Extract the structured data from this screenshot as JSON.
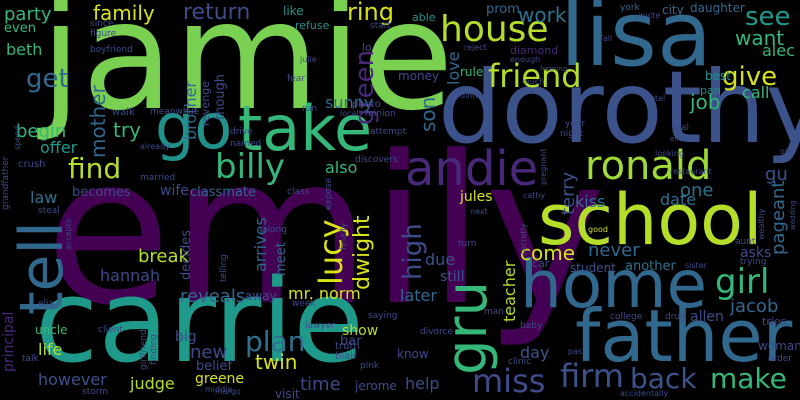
{
  "palette": {
    "dark_purple": "#440154",
    "indigo": "#3b528b",
    "teal_blue": "#31688e",
    "teal": "#21918c",
    "green": "#35b779",
    "lime": "#7ad151",
    "yellow": "#fde725"
  },
  "words": [
    {
      "text": "emily",
      "color": "#440154"
    },
    {
      "text": "jamie",
      "color": "#7ad151"
    },
    {
      "text": "carrie",
      "color": "#1f9a8a"
    },
    {
      "text": "dorothy",
      "color": "#3b528b"
    },
    {
      "text": "lisa",
      "color": "#31688e"
    },
    {
      "text": "father",
      "color": "#31688e"
    },
    {
      "text": "school",
      "color": "#b5de2b"
    },
    {
      "text": "home",
      "color": "#31688e"
    },
    {
      "text": "take",
      "color": "#35b779"
    },
    {
      "text": "go",
      "color": "#21918c"
    },
    {
      "text": "tell",
      "color": "#31688e"
    },
    {
      "text": "gru",
      "color": "#35b779"
    },
    {
      "text": "andie",
      "color": "#482878"
    },
    {
      "text": "ronald",
      "color": "#a0da39"
    },
    {
      "text": "house",
      "color": "#b5de2b"
    },
    {
      "text": "friend",
      "color": "#b5de2b"
    },
    {
      "text": "girl",
      "color": "#35b779"
    },
    {
      "text": "billy",
      "color": "#35b779"
    },
    {
      "text": "find",
      "color": "#b5de2b"
    },
    {
      "text": "lucy",
      "color": "#d8e219"
    },
    {
      "text": "miss",
      "color": "#3e4a89"
    },
    {
      "text": "firm",
      "color": "#3b528b"
    },
    {
      "text": "back",
      "color": "#3b528b"
    },
    {
      "text": "make",
      "color": "#35b779"
    },
    {
      "text": "plan",
      "color": "#2c728e"
    },
    {
      "text": "high",
      "color": "#3e4a89"
    },
    {
      "text": "dwight",
      "color": "#d8e219"
    },
    {
      "text": "give",
      "color": "#d8e219"
    },
    {
      "text": "see",
      "color": "#1f9a8a"
    },
    {
      "text": "want",
      "color": "#35b779"
    },
    {
      "text": "return",
      "color": "#3e4a89"
    },
    {
      "text": "family",
      "color": "#d8e219"
    },
    {
      "text": "get",
      "color": "#31688e"
    },
    {
      "text": "party",
      "color": "#35b779"
    },
    {
      "text": "ring",
      "color": "#d8e219"
    },
    {
      "text": "green",
      "color": "#482878"
    },
    {
      "text": "mother",
      "color": "#31688e"
    },
    {
      "text": "brother",
      "color": "#31688e"
    },
    {
      "text": "try",
      "color": "#35b779"
    },
    {
      "text": "begin",
      "color": "#35b779"
    },
    {
      "text": "beth",
      "color": "#35b779"
    },
    {
      "text": "even",
      "color": "#35b779"
    },
    {
      "text": "job",
      "color": "#35b779"
    },
    {
      "text": "alec",
      "color": "#35b779"
    },
    {
      "text": "call",
      "color": "#35b779"
    },
    {
      "text": "work",
      "color": "#2c728e"
    },
    {
      "text": "love",
      "color": "#31688e"
    },
    {
      "text": "son",
      "color": "#31688e"
    },
    {
      "text": "sunny",
      "color": "#31688e"
    },
    {
      "text": "kiss",
      "color": "#2c728e"
    },
    {
      "text": "date",
      "color": "#2c728e"
    },
    {
      "text": "one",
      "color": "#2c728e"
    },
    {
      "text": "gu",
      "color": "#3b528b"
    },
    {
      "text": "terry",
      "color": "#3b528b"
    },
    {
      "text": "come",
      "color": "#d8e219"
    },
    {
      "text": "never",
      "color": "#31688e"
    },
    {
      "text": "pageant",
      "color": "#31688e"
    },
    {
      "text": "asks",
      "color": "#3e4a89"
    },
    {
      "text": "jacob",
      "color": "#31688e"
    },
    {
      "text": "allen",
      "color": "#3e4a89"
    },
    {
      "text": "woman",
      "color": "#3e4a89"
    },
    {
      "text": "tries",
      "color": "#3e4a89"
    },
    {
      "text": "law",
      "color": "#2c728e"
    },
    {
      "text": "offer",
      "color": "#1f9a8a"
    },
    {
      "text": "becomes",
      "color": "#3e4a89"
    },
    {
      "text": "wife",
      "color": "#3e4a89"
    },
    {
      "text": "classmate",
      "color": "#31688e"
    },
    {
      "text": "also",
      "color": "#35b779"
    },
    {
      "text": "arrives",
      "color": "#31688e"
    },
    {
      "text": "break",
      "color": "#b5de2b"
    },
    {
      "text": "hannah",
      "color": "#3e4a89"
    },
    {
      "text": "reveals",
      "color": "#31688e"
    },
    {
      "text": "mr. norm",
      "color": "#d8e219"
    },
    {
      "text": "later",
      "color": "#31688e"
    },
    {
      "text": "due",
      "color": "#3b528b"
    },
    {
      "text": "still",
      "color": "#3b528b"
    },
    {
      "text": "jules",
      "color": "#d8e219"
    },
    {
      "text": "teacher",
      "color": "#b5de2b"
    },
    {
      "text": "student",
      "color": "#3b528b"
    },
    {
      "text": "another",
      "color": "#2c728e"
    },
    {
      "text": "new",
      "color": "#3e4a89"
    },
    {
      "text": "twin",
      "color": "#d8e219"
    },
    {
      "text": "greene",
      "color": "#d8e219"
    },
    {
      "text": "time",
      "color": "#3e4a89"
    },
    {
      "text": "help",
      "color": "#3e4a89"
    },
    {
      "text": "show",
      "color": "#b5de2b"
    },
    {
      "text": "day",
      "color": "#3b528b"
    },
    {
      "text": "judge",
      "color": "#b5de2b"
    },
    {
      "text": "life",
      "color": "#b5de2b"
    },
    {
      "text": "however",
      "color": "#3b528b"
    },
    {
      "text": "uncle",
      "color": "#35b779"
    },
    {
      "text": "principal",
      "color": "#482878"
    },
    {
      "text": "big",
      "color": "#3e4a89"
    },
    {
      "text": "belief",
      "color": "#3e4a89"
    },
    {
      "text": "bar",
      "color": "#3e4a89"
    },
    {
      "text": "meet",
      "color": "#31688e"
    },
    {
      "text": "away",
      "color": "#3b528b"
    },
    {
      "text": "decides",
      "color": "#3e4a89"
    },
    {
      "text": "though",
      "color": "#3e4a89"
    },
    {
      "text": "revenge",
      "color": "#3e4a89"
    },
    {
      "text": "money",
      "color": "#3e4a89"
    },
    {
      "text": "diamond",
      "color": "#482878"
    },
    {
      "text": "rule",
      "color": "#35b779"
    },
    {
      "text": "prom",
      "color": "#31688e"
    },
    {
      "text": "city",
      "color": "#31688e"
    },
    {
      "text": "daughter",
      "color": "#31688e"
    },
    {
      "text": "york",
      "color": "#31688e"
    },
    {
      "text": "best",
      "color": "#21918c"
    },
    {
      "text": "pan",
      "color": "#21918c"
    },
    {
      "text": "like",
      "color": "#21918c"
    },
    {
      "text": "refuse",
      "color": "#21918c"
    },
    {
      "text": "able",
      "color": "#21918c"
    },
    {
      "text": "visit",
      "color": "#3e4a89"
    },
    {
      "text": "jerome",
      "color": "#3e4a89"
    },
    {
      "text": "know",
      "color": "#3e4a89"
    },
    {
      "text": "truth",
      "color": "#3e4a89"
    },
    {
      "text": "blair",
      "color": "#3e4a89"
    },
    {
      "text": "since",
      "color": "#3e4a89"
    },
    {
      "text": "figure",
      "color": "#3e4a89"
    },
    {
      "text": "boyfriend",
      "color": "#3e4a89"
    },
    {
      "text": "walk",
      "color": "#3e4a89"
    },
    {
      "text": "meanwhile",
      "color": "#3e4a89"
    },
    {
      "text": "drive",
      "color": "#3e4a89"
    },
    {
      "text": "named",
      "color": "#3e4a89"
    },
    {
      "text": "married",
      "color": "#3e4a89"
    },
    {
      "text": "already",
      "color": "#3e4a89"
    },
    {
      "text": "crush",
      "color": "#3e4a89"
    },
    {
      "text": "steal",
      "color": "#3e4a89"
    },
    {
      "text": "telling",
      "color": "#3e4a89"
    },
    {
      "text": "along",
      "color": "#3e4a89"
    },
    {
      "text": "photo",
      "color": "#3e4a89"
    },
    {
      "text": "minion",
      "color": "#3e4a89"
    },
    {
      "text": "local",
      "color": "#3e4a89"
    },
    {
      "text": "run",
      "color": "#3e4a89"
    },
    {
      "text": "fear",
      "color": "#3e4a89"
    },
    {
      "text": "class",
      "color": "#3e4a89"
    },
    {
      "text": "expose",
      "color": "#3e4a89"
    },
    {
      "text": "finally",
      "color": "#3e4a89"
    },
    {
      "text": "discovers",
      "color": "#3e4a89"
    },
    {
      "text": "attempt",
      "color": "#3e4a89"
    },
    {
      "text": "year",
      "color": "#3e4a89"
    },
    {
      "text": "night",
      "color": "#3e4a89"
    },
    {
      "text": "pregnant",
      "color": "#3e4a89"
    },
    {
      "text": "cathy",
      "color": "#3e4a89"
    },
    {
      "text": "next",
      "color": "#3e4a89"
    },
    {
      "text": "secretly",
      "color": "#3e4a89"
    },
    {
      "text": "turn",
      "color": "#3e4a89"
    },
    {
      "text": "car",
      "color": "#3e4a89"
    },
    {
      "text": "good",
      "color": "#d8e219"
    },
    {
      "text": "restaurant",
      "color": "#3e4a89"
    },
    {
      "text": "hotel",
      "color": "#3e4a89"
    },
    {
      "text": "real",
      "color": "#3e4a89"
    },
    {
      "text": "looking",
      "color": "#3e4a89"
    },
    {
      "text": "aunt",
      "color": "#3e4a89"
    },
    {
      "text": "trying",
      "color": "#3e4a89"
    },
    {
      "text": "sister",
      "color": "#3e4a89"
    },
    {
      "text": "wealthy",
      "color": "#3e4a89"
    },
    {
      "text": "old",
      "color": "#3e4a89"
    },
    {
      "text": "college",
      "color": "#3e4a89"
    },
    {
      "text": "drug",
      "color": "#3e4a89"
    },
    {
      "text": "order",
      "color": "#3e4a89"
    },
    {
      "text": "accidentally",
      "color": "#3e4a89"
    },
    {
      "text": "clinic",
      "color": "#3e4a89"
    },
    {
      "text": "divorce",
      "color": "#3e4a89"
    },
    {
      "text": "baby",
      "color": "#3e4a89"
    },
    {
      "text": "man",
      "color": "#3e4a89"
    },
    {
      "text": "pink",
      "color": "#3e4a89"
    },
    {
      "text": "pas",
      "color": "#3e4a89"
    },
    {
      "text": "saying",
      "color": "#3e4a89"
    },
    {
      "text": "lawyer",
      "color": "#3e4a89"
    },
    {
      "text": "week",
      "color": "#3e4a89"
    },
    {
      "text": "client",
      "color": "#3e4a89"
    },
    {
      "text": "finding",
      "color": "#3e4a89"
    },
    {
      "text": "margo",
      "color": "#3e4a89"
    },
    {
      "text": "middle",
      "color": "#3e4a89"
    },
    {
      "text": "storm",
      "color": "#3e4a89"
    },
    {
      "text": "talk",
      "color": "#3e4a89"
    },
    {
      "text": "girlfriend",
      "color": "#3e4a89"
    },
    {
      "text": "elia",
      "color": "#3e4a89"
    },
    {
      "text": "accepts",
      "color": "#3e4a89"
    },
    {
      "text": "grandfather",
      "color": "#3e4a89"
    },
    {
      "text": "spend",
      "color": "#3e4a89"
    },
    {
      "text": "dinner",
      "color": "#3e4a89"
    },
    {
      "text": "much",
      "color": "#3e4a89"
    },
    {
      "text": "fall",
      "color": "#3e4a89"
    },
    {
      "text": "invite",
      "color": "#3e4a89"
    },
    {
      "text": "reject",
      "color": "#3e4a89"
    },
    {
      "text": "enough",
      "color": "#3e4a89"
    },
    {
      "text": "forming",
      "color": "#3e4a89"
    },
    {
      "text": "start",
      "color": "#3e4a89"
    },
    {
      "text": "lo",
      "color": "#3e4a89"
    },
    {
      "text": "julie",
      "color": "#3e4a89"
    },
    {
      "text": "em",
      "color": "#3e4a89"
    },
    {
      "text": "wedding",
      "color": "#3e4a89"
    }
  ]
}
